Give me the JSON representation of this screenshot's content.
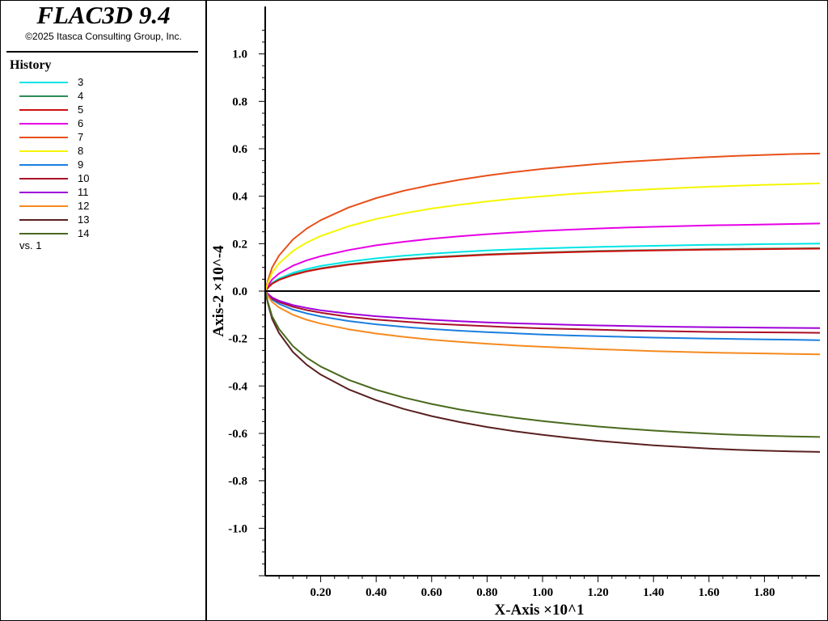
{
  "app": {
    "title": "FLAC3D 9.4",
    "copyright": "©2025 Itasca Consulting Group, Inc."
  },
  "legend": {
    "title": "History",
    "vs_label": "vs. 1"
  },
  "chart_data": {
    "type": "line",
    "title": "",
    "xlabel": "X-Axis ×10^1",
    "ylabel": "Axis-2 ×10^-4",
    "xlim": [
      0.0,
      2.0
    ],
    "ylim": [
      -1.2,
      1.2
    ],
    "x_ticks": [
      0.2,
      0.4,
      0.6,
      0.8,
      1.0,
      1.2,
      1.4,
      1.6,
      1.8
    ],
    "x_tick_labels": [
      "0.20",
      "0.40",
      "0.60",
      "0.80",
      "1.00",
      "1.20",
      "1.40",
      "1.60",
      "1.80"
    ],
    "y_ticks": [
      1.0,
      0.8,
      0.6,
      0.4,
      0.2,
      0.0,
      -0.2,
      -0.4,
      -0.6,
      -0.8,
      -1.0
    ],
    "y_tick_labels": [
      "1.0",
      "0.8",
      "0.6",
      "0.4",
      "0.2",
      "0.0",
      "-0.2",
      "-0.4",
      "-0.6",
      "-0.8",
      "-1.0"
    ],
    "grid": false,
    "legend_position": "left panel",
    "x": [
      0.0,
      0.01,
      0.025,
      0.05,
      0.1,
      0.15,
      0.2,
      0.3,
      0.4,
      0.5,
      0.6,
      0.7,
      0.8,
      0.9,
      1.0,
      1.1,
      1.2,
      1.3,
      1.4,
      1.5,
      1.6,
      1.7,
      1.8,
      1.9,
      2.0
    ],
    "series": [
      {
        "name": "3",
        "color": "#00e5e5",
        "values": [
          0.0,
          0.016,
          0.035,
          0.053,
          0.077,
          0.093,
          0.106,
          0.124,
          0.138,
          0.149,
          0.158,
          0.165,
          0.171,
          0.176,
          0.18,
          0.183,
          0.186,
          0.189,
          0.191,
          0.193,
          0.195,
          0.196,
          0.198,
          0.199,
          0.2
        ]
      },
      {
        "name": "4",
        "color": "#2e8b57",
        "values": [
          0.0,
          0.014,
          0.032,
          0.048,
          0.07,
          0.085,
          0.096,
          0.113,
          0.125,
          0.135,
          0.143,
          0.149,
          0.155,
          0.159,
          0.163,
          0.166,
          0.169,
          0.171,
          0.173,
          0.175,
          0.177,
          0.178,
          0.179,
          0.18,
          0.181
        ]
      },
      {
        "name": "5",
        "color": "#cc1111",
        "values": [
          0.0,
          0.014,
          0.031,
          0.047,
          0.068,
          0.083,
          0.094,
          0.111,
          0.123,
          0.133,
          0.141,
          0.147,
          0.153,
          0.157,
          0.161,
          0.164,
          0.167,
          0.169,
          0.171,
          0.173,
          0.175,
          0.176,
          0.177,
          0.178,
          0.179
        ]
      },
      {
        "name": "6",
        "color": "#e600e6",
        "values": [
          0.0,
          0.022,
          0.049,
          0.074,
          0.107,
          0.13,
          0.147,
          0.173,
          0.193,
          0.208,
          0.221,
          0.231,
          0.24,
          0.247,
          0.254,
          0.259,
          0.264,
          0.268,
          0.271,
          0.274,
          0.277,
          0.279,
          0.281,
          0.283,
          0.285
        ]
      },
      {
        "name": "7",
        "color": "#e8501a",
        "values": [
          0.0,
          0.045,
          0.1,
          0.15,
          0.218,
          0.264,
          0.299,
          0.352,
          0.392,
          0.423,
          0.448,
          0.469,
          0.487,
          0.502,
          0.515,
          0.526,
          0.536,
          0.545,
          0.552,
          0.559,
          0.565,
          0.57,
          0.574,
          0.578,
          0.58
        ]
      },
      {
        "name": "8",
        "color": "#f5f500",
        "values": [
          0.0,
          0.035,
          0.078,
          0.117,
          0.169,
          0.205,
          0.232,
          0.273,
          0.304,
          0.328,
          0.348,
          0.364,
          0.378,
          0.39,
          0.4,
          0.409,
          0.417,
          0.424,
          0.43,
          0.435,
          0.44,
          0.444,
          0.448,
          0.451,
          0.454
        ]
      },
      {
        "name": "9",
        "color": "#1a7fe0",
        "values": [
          0.0,
          -0.016,
          -0.036,
          -0.054,
          -0.078,
          -0.094,
          -0.107,
          -0.126,
          -0.14,
          -0.151,
          -0.16,
          -0.167,
          -0.173,
          -0.178,
          -0.183,
          -0.187,
          -0.19,
          -0.193,
          -0.196,
          -0.198,
          -0.2,
          -0.202,
          -0.204,
          -0.205,
          -0.207
        ]
      },
      {
        "name": "10",
        "color": "#aa0f28",
        "values": [
          0.0,
          -0.014,
          -0.031,
          -0.046,
          -0.066,
          -0.08,
          -0.091,
          -0.108,
          -0.12,
          -0.129,
          -0.137,
          -0.143,
          -0.148,
          -0.153,
          -0.157,
          -0.16,
          -0.163,
          -0.166,
          -0.168,
          -0.17,
          -0.172,
          -0.173,
          -0.174,
          -0.175,
          -0.176
        ]
      },
      {
        "name": "11",
        "color": "#a000d8",
        "values": [
          0.0,
          -0.012,
          -0.027,
          -0.041,
          -0.059,
          -0.071,
          -0.081,
          -0.095,
          -0.106,
          -0.114,
          -0.121,
          -0.127,
          -0.132,
          -0.136,
          -0.139,
          -0.142,
          -0.145,
          -0.147,
          -0.149,
          -0.151,
          -0.152,
          -0.153,
          -0.154,
          -0.155,
          -0.156
        ]
      },
      {
        "name": "12",
        "color": "#f58a1f",
        "values": [
          0.0,
          -0.021,
          -0.046,
          -0.069,
          -0.1,
          -0.121,
          -0.137,
          -0.161,
          -0.179,
          -0.193,
          -0.205,
          -0.214,
          -0.222,
          -0.229,
          -0.235,
          -0.24,
          -0.245,
          -0.249,
          -0.253,
          -0.256,
          -0.259,
          -0.261,
          -0.263,
          -0.265,
          -0.267
        ]
      },
      {
        "name": "13",
        "color": "#5a2020",
        "values": [
          0.0,
          -0.053,
          -0.118,
          -0.177,
          -0.257,
          -0.311,
          -0.352,
          -0.414,
          -0.46,
          -0.497,
          -0.527,
          -0.552,
          -0.573,
          -0.591,
          -0.606,
          -0.619,
          -0.631,
          -0.641,
          -0.65,
          -0.657,
          -0.664,
          -0.669,
          -0.673,
          -0.676,
          -0.678
        ]
      },
      {
        "name": "14",
        "color": "#4a6a1e",
        "values": [
          0.0,
          -0.048,
          -0.107,
          -0.16,
          -0.232,
          -0.281,
          -0.318,
          -0.374,
          -0.416,
          -0.449,
          -0.476,
          -0.499,
          -0.518,
          -0.534,
          -0.548,
          -0.56,
          -0.571,
          -0.58,
          -0.588,
          -0.595,
          -0.601,
          -0.606,
          -0.61,
          -0.613,
          -0.615
        ]
      }
    ]
  }
}
